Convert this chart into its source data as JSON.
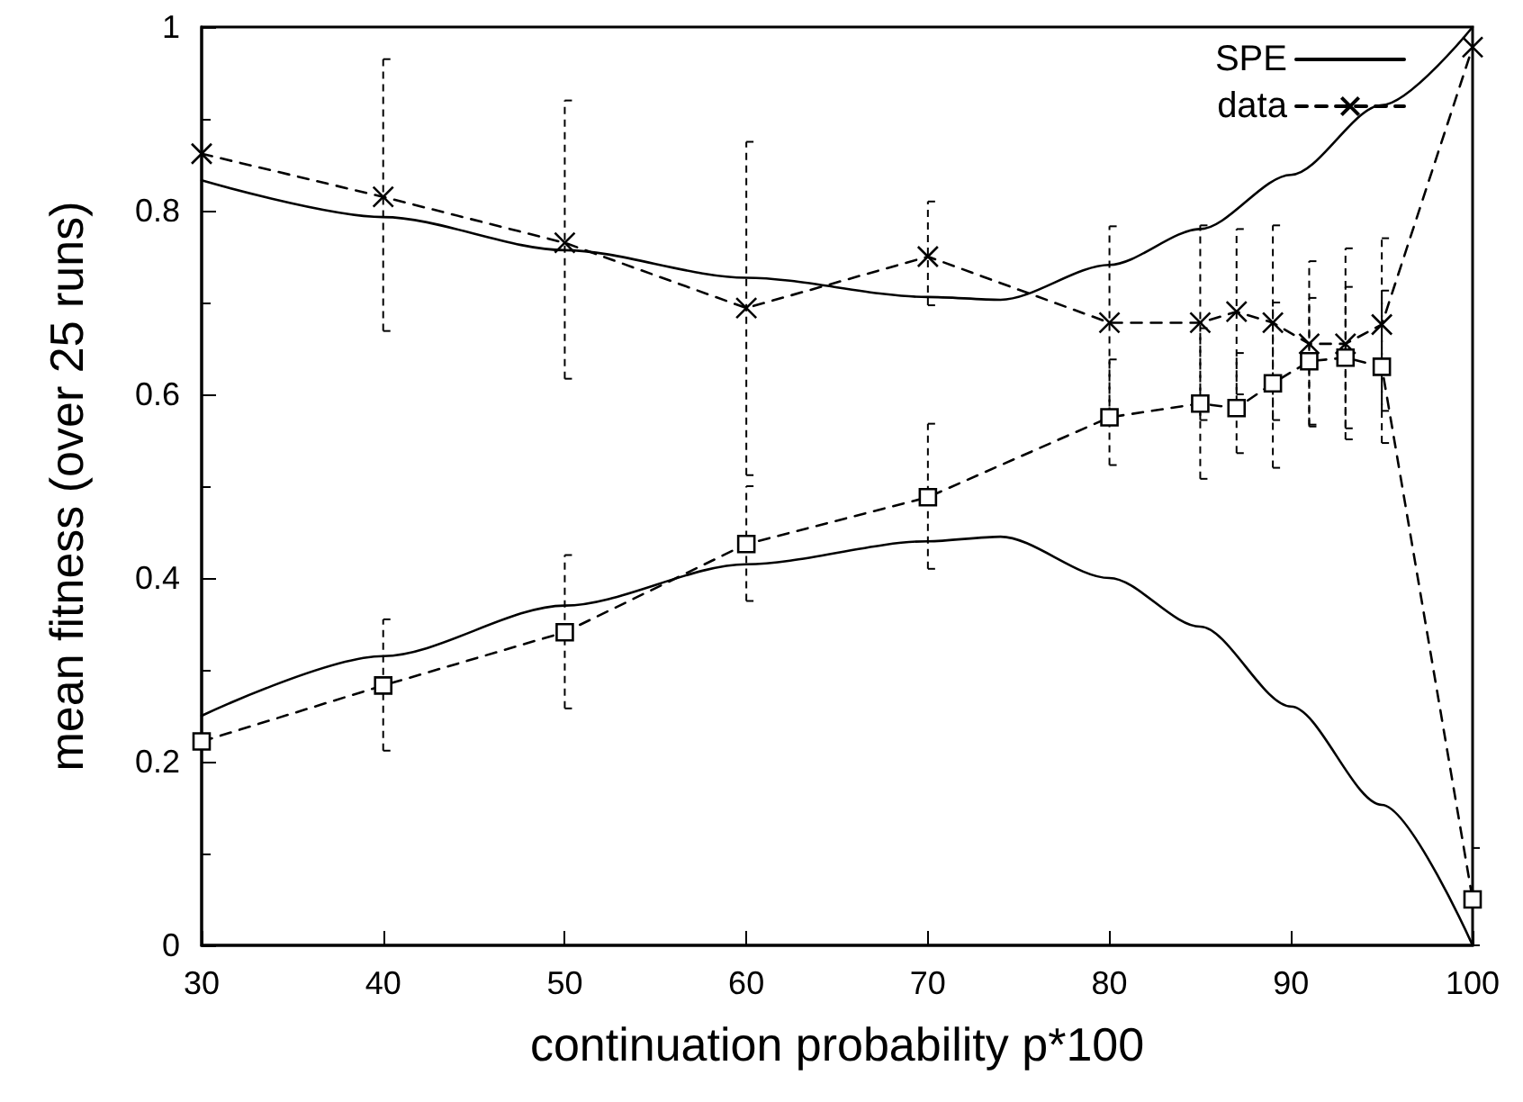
{
  "chart_data": {
    "type": "line",
    "xlabel": "continuation probability p*100",
    "ylabel": "mean fitness (over 25 runs)",
    "xlim": [
      30,
      100
    ],
    "xticks": [
      30,
      40,
      50,
      60,
      70,
      80,
      90,
      100
    ],
    "ylim": [
      0,
      1
    ],
    "yticks": [
      0,
      0.2,
      0.4,
      0.6,
      0.8,
      1
    ],
    "grid": false,
    "legend": "top right",
    "series": [
      {
        "name": "SPE",
        "color": "#000000",
        "line_style": "solid",
        "marker": "none",
        "x": [
          30,
          40,
          50,
          60,
          70,
          74,
          80,
          85,
          90,
          95,
          100
        ],
        "values": [
          0.833,
          0.793,
          0.757,
          0.727,
          0.706,
          0.703,
          0.741,
          0.78,
          0.839,
          0.915,
          1.0
        ]
      },
      {
        "color": "#000000",
        "line_style": "solid",
        "marker": "none",
        "x": [
          30,
          40,
          50,
          60,
          70,
          74,
          80,
          85,
          90,
          95,
          100
        ],
        "values": [
          0.25,
          0.315,
          0.37,
          0.415,
          0.44,
          0.445,
          0.4,
          0.347,
          0.26,
          0.153,
          0.0
        ]
      },
      {
        "name": "data",
        "color": "#000000",
        "line_style": "dashed",
        "marker": "cross",
        "x": [
          30,
          40,
          50,
          60,
          70,
          80,
          85,
          87,
          89,
          91,
          93,
          95,
          100
        ],
        "values": [
          0.862,
          0.815,
          0.765,
          0.694,
          0.75,
          0.678,
          0.678,
          0.69,
          0.678,
          0.655,
          0.655,
          0.676,
          0.978
        ],
        "errors": [
          null,
          [
            0.669,
            0.965
          ],
          [
            0.617,
            0.92
          ],
          [
            0.512,
            0.875
          ],
          [
            0.697,
            0.81
          ],
          [
            0.573,
            0.783
          ],
          [
            0.572,
            0.784
          ],
          [
            0.6,
            0.78
          ],
          [
            0.572,
            0.784
          ],
          [
            0.565,
            0.745
          ],
          [
            0.551,
            0.759
          ],
          [
            0.582,
            0.77
          ],
          null
        ]
      },
      {
        "color": "#000000",
        "line_style": "dashed",
        "marker": "square",
        "x": [
          30,
          40,
          50,
          60,
          70,
          80,
          85,
          87,
          89,
          91,
          93,
          95,
          100
        ],
        "values": [
          0.222,
          0.283,
          0.341,
          0.437,
          0.488,
          0.575,
          0.59,
          0.585,
          0.612,
          0.636,
          0.64,
          0.63,
          0.05
        ],
        "errors": [
          null,
          [
            0.212,
            0.355
          ],
          [
            0.258,
            0.425
          ],
          [
            0.375,
            0.5
          ],
          [
            0.41,
            0.568
          ],
          [
            0.523,
            0.638
          ],
          [
            0.508,
            0.672
          ],
          [
            0.536,
            0.645
          ],
          [
            0.52,
            0.7
          ],
          [
            0.567,
            0.705
          ],
          [
            0.563,
            0.717
          ],
          [
            0.547,
            0.713
          ],
          [
            0.0,
            0.106
          ]
        ]
      }
    ]
  }
}
